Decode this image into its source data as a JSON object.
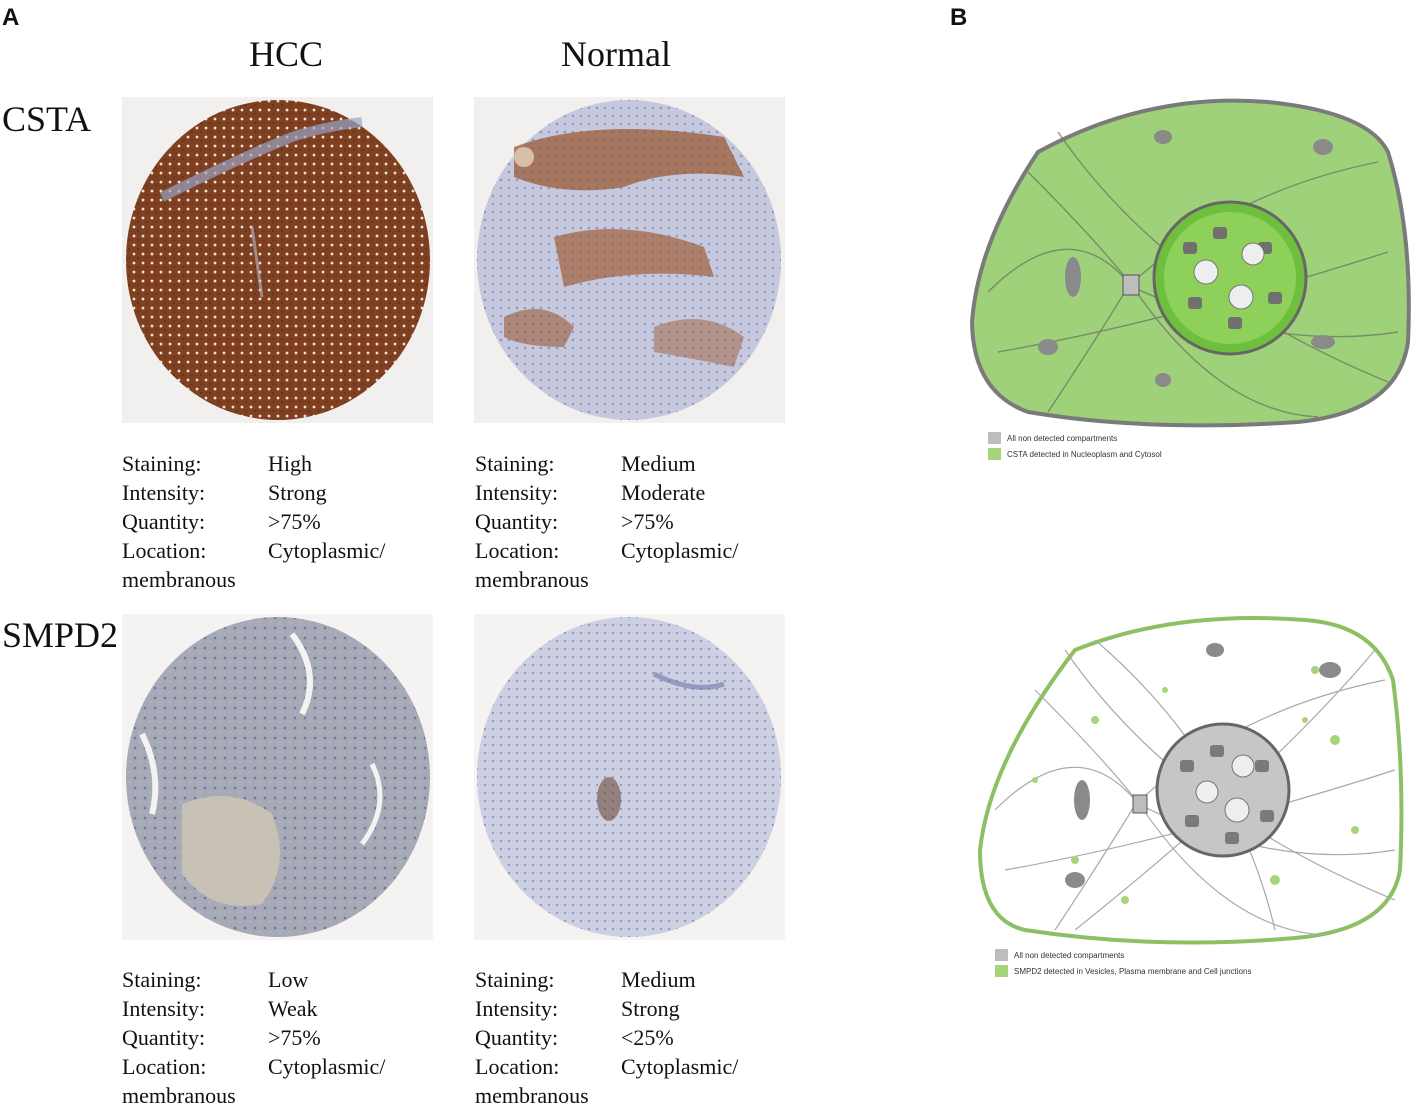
{
  "panels": {
    "a_label": "A",
    "b_label": "B"
  },
  "columns": {
    "hcc": "HCC",
    "normal": "Normal"
  },
  "rows": [
    {
      "gene": "CSTA",
      "hcc": {
        "staining": "High",
        "intensity": "Strong",
        "quantity": ">75%",
        "location": "Cytoplasmic/",
        "location_cont": "membranous"
      },
      "normal": {
        "staining": "Medium",
        "intensity": "Moderate",
        "quantity": ">75%",
        "location": "Cytoplasmic/",
        "location_cont": "membranous"
      }
    },
    {
      "gene": "SMPD2",
      "hcc": {
        "staining": "Low",
        "intensity": "Weak",
        "quantity": ">75%",
        "location": "Cytoplasmic/",
        "location_cont": "membranous"
      },
      "normal": {
        "staining": "Medium",
        "intensity": "Strong",
        "quantity": "<25%",
        "location": "Cytoplasmic/",
        "location_cont": "membranous"
      }
    }
  ],
  "stat_keys": {
    "staining": "Staining:",
    "intensity": "Intensity:",
    "quantity": "Quantity:",
    "location": "Location:"
  },
  "legends": {
    "csta": {
      "non_detected": "All non detected compartments",
      "detected": "CSTA detected in Nucleoplasm and Cytosol"
    },
    "smpd2": {
      "non_detected": "All non detected compartments",
      "detected": "SMPD2 detected in Vesicles, Plasma membrane and Cell junctions"
    }
  },
  "colors": {
    "hcc_stain": "#8a4a28",
    "normal_bg": "#c9cbe0",
    "detected_green": "#a6d47c",
    "non_detected_gray": "#bdbdbd"
  }
}
